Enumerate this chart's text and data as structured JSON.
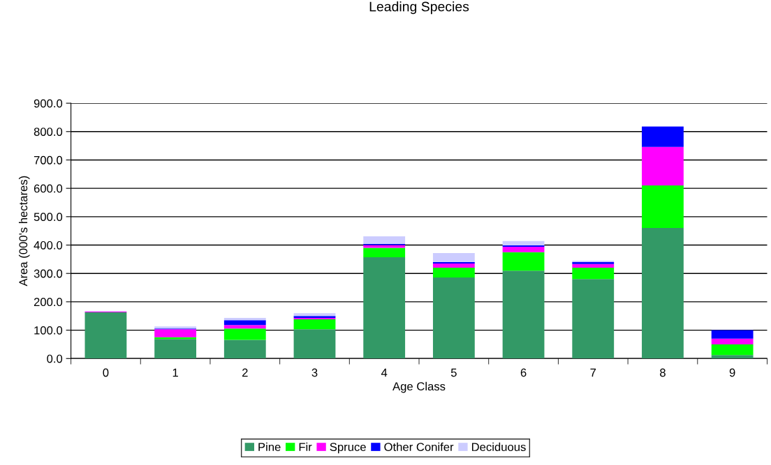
{
  "chart_data": {
    "type": "bar",
    "title": "Leading Species",
    "xlabel": "Age Class",
    "ylabel": "Area (000's hectares)",
    "categories": [
      "0",
      "1",
      "2",
      "3",
      "4",
      "5",
      "6",
      "7",
      "8",
      "9"
    ],
    "stacked": true,
    "series": [
      {
        "name": "Pine",
        "color": "#339966",
        "values": [
          163,
          69,
          66,
          103,
          357,
          286,
          310,
          280,
          460,
          12
        ]
      },
      {
        "name": "Fir",
        "color": "#00ff00",
        "values": [
          0,
          6,
          40,
          35,
          33,
          34,
          65,
          40,
          150,
          38
        ]
      },
      {
        "name": "Spruce",
        "color": "#ff00ff",
        "values": [
          2,
          28,
          12,
          5,
          10,
          15,
          19,
          13,
          136,
          20
        ]
      },
      {
        "name": "Other Conifer",
        "color": "#0000ff",
        "values": [
          0,
          3,
          17,
          7,
          4,
          5,
          5,
          7,
          72,
          30
        ]
      },
      {
        "name": "Deciduous",
        "color": "#ccccff",
        "values": [
          2,
          7,
          8,
          10,
          27,
          32,
          15,
          5,
          null,
          0
        ]
      }
    ],
    "ylim": [
      0,
      900
    ],
    "yticks": [
      {
        "value": 0,
        "label": "0.0"
      },
      {
        "value": 100,
        "label": "100.0"
      },
      {
        "value": 200,
        "label": "200.0"
      },
      {
        "value": 300,
        "label": "300.0"
      },
      {
        "value": 400,
        "label": "400.0"
      },
      {
        "value": 500,
        "label": "500.0"
      },
      {
        "value": 600,
        "label": "600.0"
      },
      {
        "value": 700,
        "label": "700.0"
      },
      {
        "value": 800,
        "label": "800.0"
      },
      {
        "value": 900,
        "label": "900.0"
      }
    ],
    "grid": "y",
    "legend": "bottom"
  }
}
